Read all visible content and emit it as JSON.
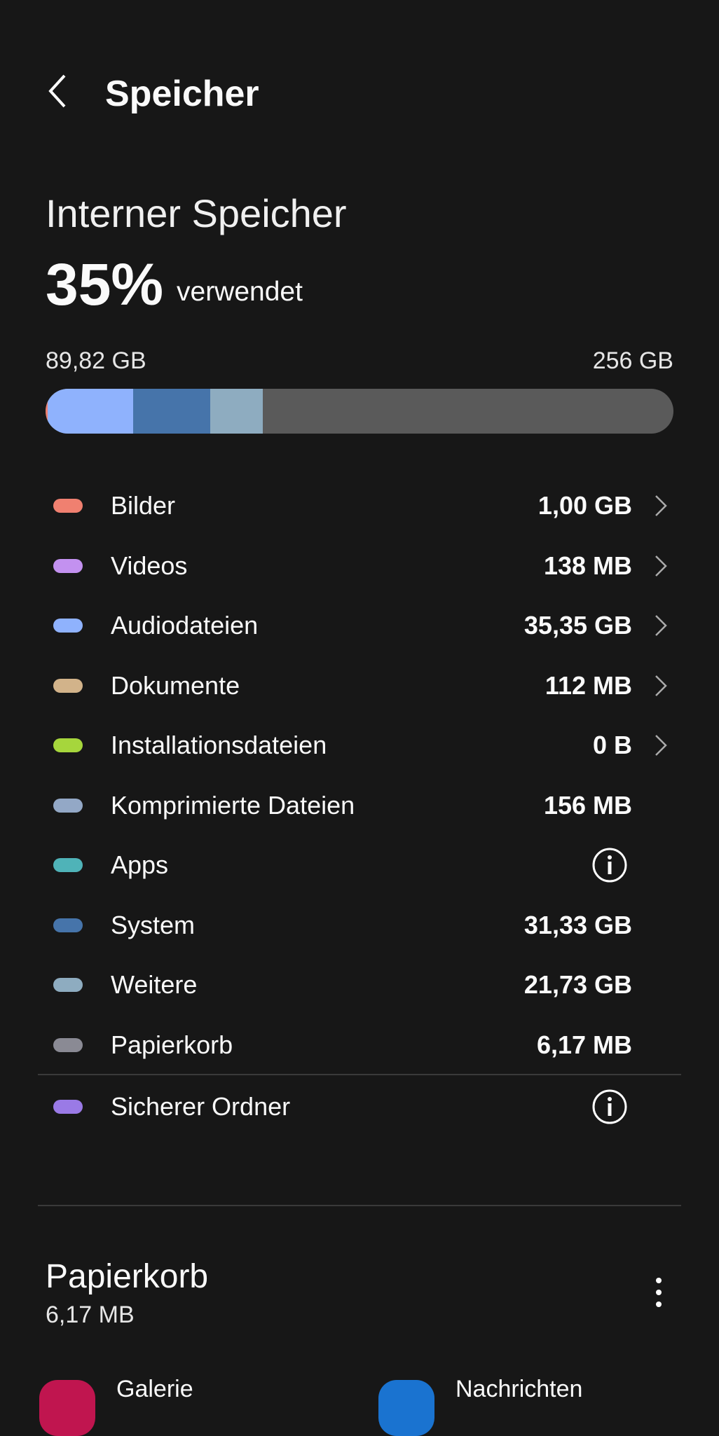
{
  "header": {
    "title": "Speicher"
  },
  "storage": {
    "heading": "Interner Speicher",
    "percent": "35%",
    "percent_suffix": "verwendet",
    "used": "89,82 GB",
    "total": "256 GB",
    "used_fraction": 0.35,
    "bar_colors": [
      "#f08070",
      "#8fb2fd",
      "#4674aa",
      "#8eacc0"
    ]
  },
  "categories": [
    {
      "label": "Bilder",
      "value": "1,00 GB",
      "color": "#f08070",
      "chevron": true
    },
    {
      "label": "Videos",
      "value": "138 MB",
      "color": "#c391f0",
      "chevron": true
    },
    {
      "label": "Audiodateien",
      "value": "35,35 GB",
      "color": "#8fb2fd",
      "chevron": true
    },
    {
      "label": "Dokumente",
      "value": "112 MB",
      "color": "#d2b38a",
      "chevron": true
    },
    {
      "label": "Installationsdateien",
      "value": "0 B",
      "color": "#a6d63c",
      "chevron": true
    },
    {
      "label": "Komprimierte Dateien",
      "value": "156 MB",
      "color": "#93a8c6"
    },
    {
      "label": "Apps",
      "value": "",
      "color": "#4fb3b8",
      "info": true
    },
    {
      "label": "System",
      "value": "31,33 GB",
      "color": "#4674aa"
    },
    {
      "label": "Weitere",
      "value": "21,73 GB",
      "color": "#8eacc0"
    },
    {
      "label": "Papierkorb",
      "value": "6,17 MB",
      "color": "#8a8a94"
    },
    {
      "label": "Sicherer Ordner",
      "value": "",
      "color": "#9a7ae6",
      "info": true
    }
  ],
  "trash": {
    "title": "Papierkorb",
    "size": "6,17 MB",
    "apps": [
      {
        "name": "Galerie",
        "color": "#c0154f"
      },
      {
        "name": "Nachrichten",
        "color": "#1a73d0"
      }
    ]
  }
}
